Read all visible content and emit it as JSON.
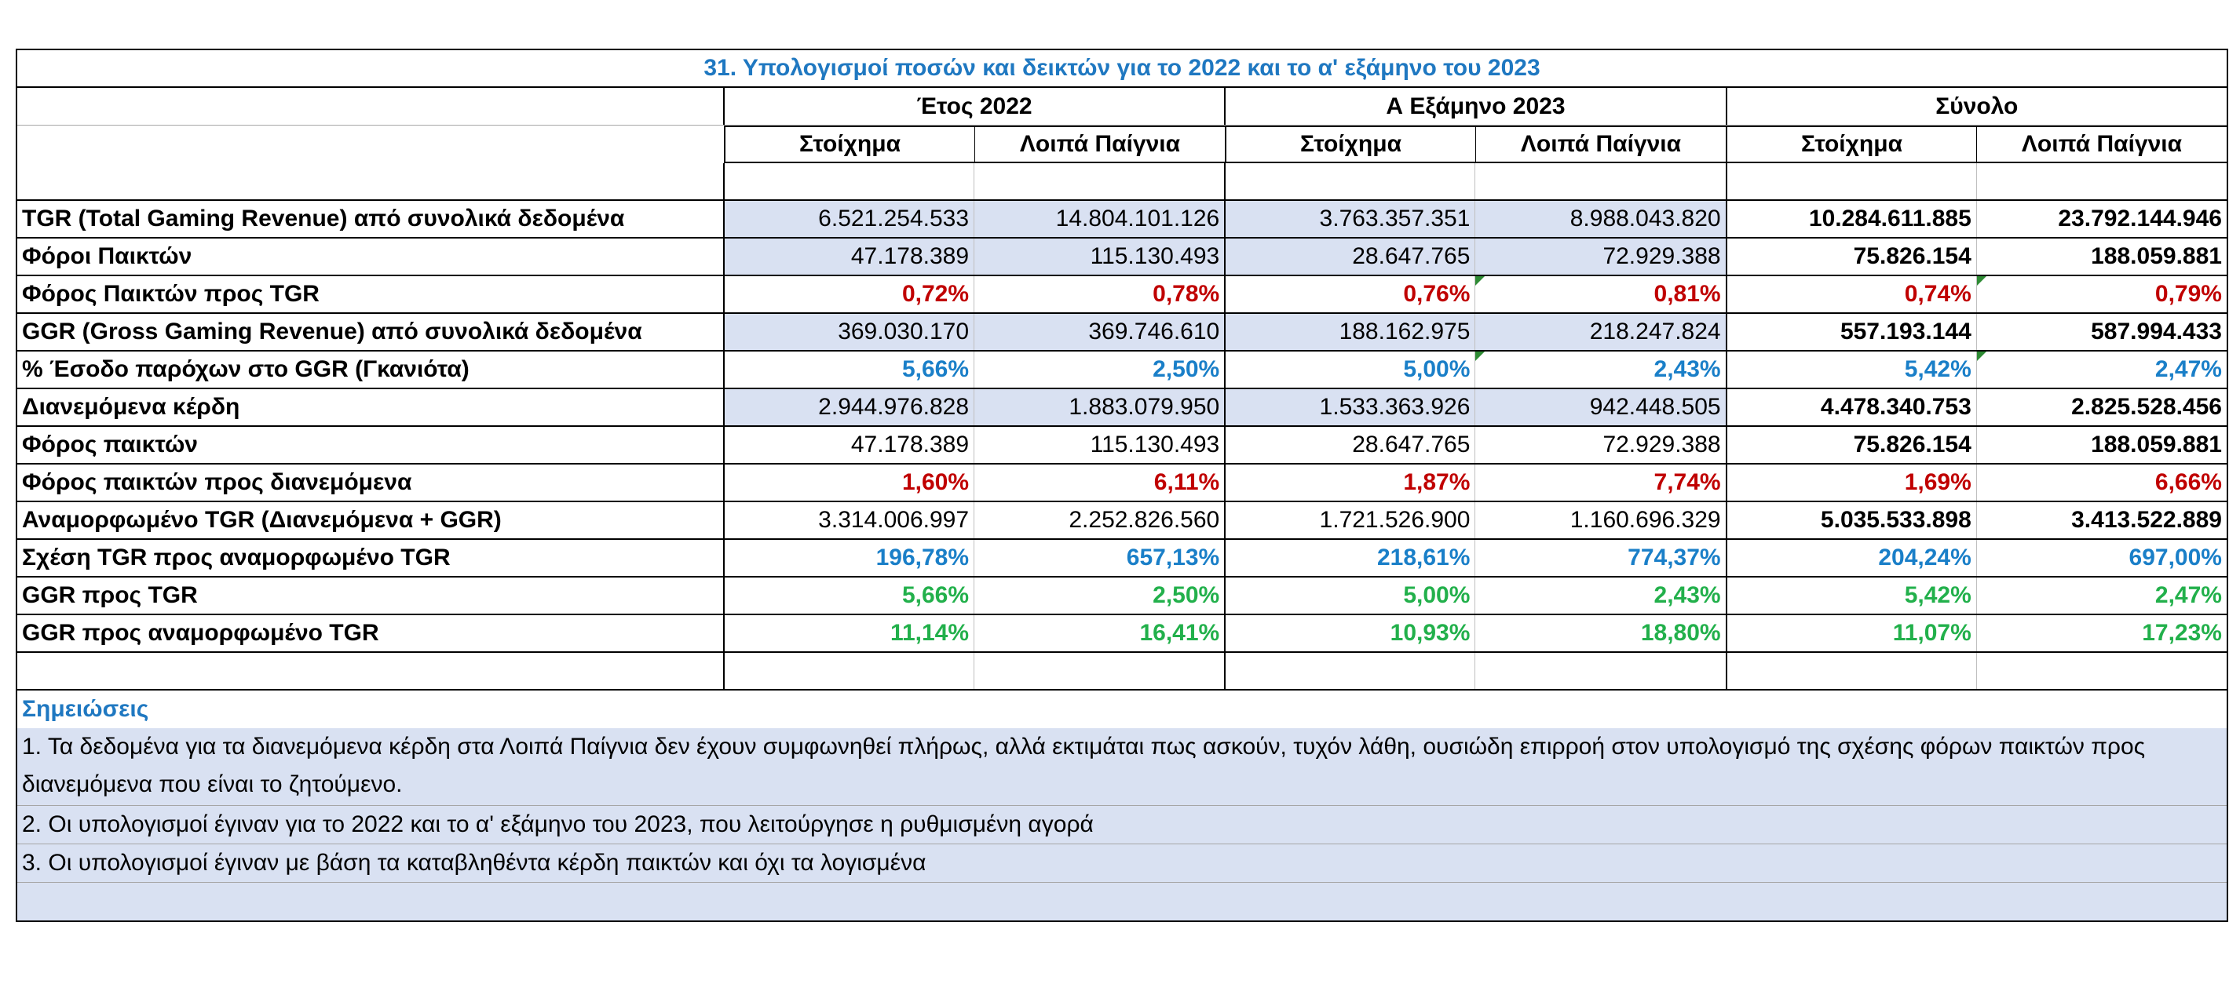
{
  "title": "31. Υπολογισμοί ποσών και δεικτών για το 2022 και το α' εξάμηνο του 2023",
  "groups": [
    "Έτος 2022",
    "Α Εξάμηνο 2023",
    "Σύνολο"
  ],
  "subheaders": [
    "Στοίχημα",
    "Λοιπά Παίγνια",
    "Στοίχημα",
    "Λοιπά Παίγνια",
    "Στοίχημα",
    "Λοιπά Παίγνια"
  ],
  "rows": [
    {
      "label": "TGR (Total Gaming Revenue) από συνολικά δεδομένα",
      "values": [
        "6.521.254.533",
        "14.804.101.126",
        "3.763.357.351",
        "8.988.043.820",
        "10.284.611.885",
        "23.792.144.946"
      ]
    },
    {
      "label": "Φόροι Παικτών",
      "values": [
        "47.178.389",
        "115.130.493",
        "28.647.765",
        "72.929.388",
        "75.826.154",
        "188.059.881"
      ]
    },
    {
      "label": "Φόρος Παικτών προς TGR",
      "values": [
        "0,72%",
        "0,78%",
        "0,76%",
        "0,81%",
        "0,74%",
        "0,79%"
      ]
    },
    {
      "label": "GGR (Gross Gaming Revenue) από συνολικά δεδομένα",
      "values": [
        "369.030.170",
        "369.746.610",
        "188.162.975",
        "218.247.824",
        "557.193.144",
        "587.994.433"
      ]
    },
    {
      "label": "% Έσοδο παρόχων στο GGR (Γκανιότα)",
      "values": [
        "5,66%",
        "2,50%",
        "5,00%",
        "2,43%",
        "5,42%",
        "2,47%"
      ]
    },
    {
      "label": "Διανεμόμενα κέρδη",
      "values": [
        "2.944.976.828",
        "1.883.079.950",
        "1.533.363.926",
        "942.448.505",
        "4.478.340.753",
        "2.825.528.456"
      ]
    },
    {
      "label": "Φόρος παικτών",
      "values": [
        "47.178.389",
        "115.130.493",
        "28.647.765",
        "72.929.388",
        "75.826.154",
        "188.059.881"
      ]
    },
    {
      "label": "Φόρος παικτών προς διανεμόμενα",
      "values": [
        "1,60%",
        "6,11%",
        "1,87%",
        "7,74%",
        "1,69%",
        "6,66%"
      ]
    },
    {
      "label": "Αναμορφωμένο TGR (Διανεμόμενα + GGR)",
      "values": [
        "3.314.006.997",
        "2.252.826.560",
        "1.721.526.900",
        "1.160.696.329",
        "5.035.533.898",
        "3.413.522.889"
      ]
    },
    {
      "label": "Σχέση TGR προς αναμορφωμένο TGR",
      "values": [
        "196,78%",
        "657,13%",
        "218,61%",
        "774,37%",
        "204,24%",
        "697,00%"
      ]
    },
    {
      "label": "GGR προς TGR",
      "values": [
        "5,66%",
        "2,50%",
        "5,00%",
        "2,43%",
        "5,42%",
        "2,47%"
      ]
    },
    {
      "label": "GGR προς αναμορφωμένο TGR",
      "values": [
        "11,14%",
        "16,41%",
        "10,93%",
        "18,80%",
        "11,07%",
        "17,23%"
      ]
    }
  ],
  "notes": {
    "title": "Σημειώσεις",
    "items": [
      "1. Τα δεδομένα για τα διανεμόμενα κέρδη στα Λοιπά Παίγνια δεν έχουν συμφωνηθεί πλήρως, αλλά εκτιμάται πως ασκούν, τυχόν λάθη, ουσιώδη επιρροή στον υπολογισμό της σχέσης φόρων παικτών προς διανεμόμενα που είναι το ζητούμενο.",
      "2. Οι υπολογισμοί έγιναν για το 2022 και το α' εξάμηνο του 2023, που λειτούργησε η ρυθμισμένη αγορά",
      "3. Οι υπολογισμοί έγιναν με βάση τα καταβληθέντα κέρδη παικτών και όχι τα λογισμένα"
    ]
  },
  "colors": {
    "title_blue": "#1f78c1",
    "pct_red": "#c00000",
    "pct_blue": "#1a7fc8",
    "pct_green": "#22b04b",
    "shade": "#d9e1f2"
  }
}
